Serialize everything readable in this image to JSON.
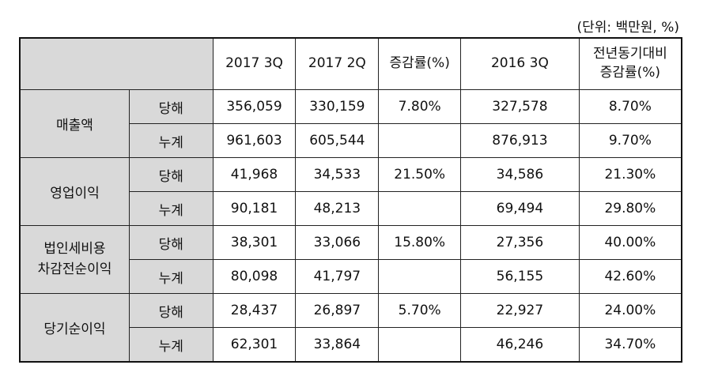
{
  "unit_note": "(단위: 백만원, %)",
  "headers": [
    "2017 3Q",
    "2017 2Q",
    "증감률(%)",
    "2016 3Q",
    "전년동기대비 증감률(%)"
  ],
  "header_last_line1": "전년동기대비",
  "header_last_line2": "증감률(%)",
  "groups": [
    {
      "label_line1": "매출액",
      "label_line2": "",
      "rows": [
        {
          "sub": "당해",
          "q3_2017": "356,059",
          "q2_2017": "330,159",
          "chg": "7.80%",
          "q3_2016": "327,578",
          "yoy": "8.70%"
        },
        {
          "sub": "누계",
          "q3_2017": "961,603",
          "q2_2017": "605,544",
          "chg": "",
          "q3_2016": "876,913",
          "yoy": "9.70%"
        }
      ]
    },
    {
      "label_line1": "영업이익",
      "label_line2": "",
      "rows": [
        {
          "sub": "당해",
          "q3_2017": "41,968",
          "q2_2017": "34,533",
          "chg": "21.50%",
          "q3_2016": "34,586",
          "yoy": "21.30%"
        },
        {
          "sub": "누계",
          "q3_2017": "90,181",
          "q2_2017": "48,213",
          "chg": "",
          "q3_2016": "69,494",
          "yoy": "29.80%"
        }
      ]
    },
    {
      "label_line1": "법인세비용",
      "label_line2": "차감전순이익",
      "rows": [
        {
          "sub": "당해",
          "q3_2017": "38,301",
          "q2_2017": "33,066",
          "chg": "15.80%",
          "q3_2016": "27,356",
          "yoy": "40.00%"
        },
        {
          "sub": "누계",
          "q3_2017": "80,098",
          "q2_2017": "41,797",
          "chg": "",
          "q3_2016": "56,155",
          "yoy": "42.60%"
        }
      ]
    },
    {
      "label_line1": "당기순이익",
      "label_line2": "",
      "rows": [
        {
          "sub": "당해",
          "q3_2017": "28,437",
          "q2_2017": "26,897",
          "chg": "5.70%",
          "q3_2016": "22,927",
          "yoy": "24.00%"
        },
        {
          "sub": "누계",
          "q3_2017": "62,301",
          "q2_2017": "33,864",
          "chg": "",
          "q3_2016": "46,246",
          "yoy": "34.70%"
        }
      ]
    }
  ]
}
